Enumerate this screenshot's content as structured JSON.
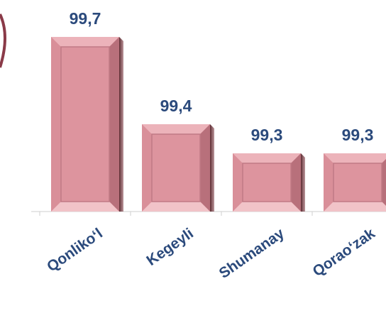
{
  "chart_data": {
    "type": "bar",
    "categories": [
      "Qonliko‘l",
      "Kegeyli",
      "Shumanay",
      "Qorao‘zak"
    ],
    "values": [
      99.7,
      99.4,
      99.3,
      99.3
    ],
    "value_labels": [
      "99,7",
      "99,4",
      "99,3",
      "99,3"
    ],
    "color": "#d98f99",
    "ylim": [
      99.1,
      99.8
    ]
  }
}
